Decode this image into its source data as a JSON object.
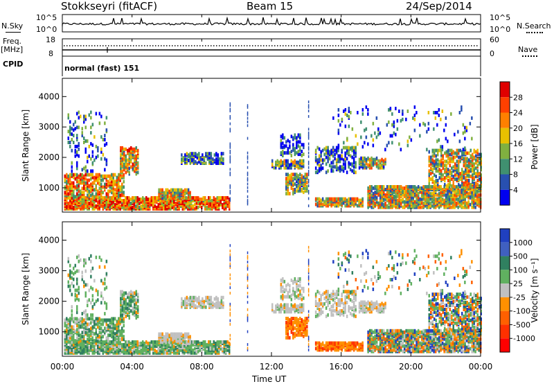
{
  "header": {
    "station": "Stokkseyri (fitACF)",
    "beam": "Beam 15",
    "date": "24/Sep/2014"
  },
  "panels": {
    "nsky_label": "N.Sky",
    "nsky_ticks": [
      "10^5",
      "10^0"
    ],
    "nsearch_label": "N.Search",
    "freq_label": "Freq.",
    "freq_unit": "[MHz]",
    "freq_ticks": [
      "18",
      "8"
    ],
    "nave_ticks": [
      "60",
      "0"
    ],
    "nave_label": "Nave",
    "cpid_label": "CPID",
    "cpid_text": "normal (fast) 151"
  },
  "chart_data": [
    {
      "type": "heatmap",
      "name": "power",
      "ylabel": "Slant Range [km]",
      "y_ticks": [
        1000,
        2000,
        3000,
        4000
      ],
      "ylim": [
        200,
        4600
      ],
      "xlabel": "",
      "x_ticks": [
        "00:00",
        "04:00",
        "08:00",
        "12:00",
        "16:00",
        "20:00",
        "00:00"
      ],
      "xlim_hours": [
        0,
        24
      ],
      "colorbar": {
        "label": "Power [dB]",
        "ticks": [
          "28",
          "24",
          "20",
          "16",
          "12",
          "8",
          "4"
        ],
        "colors": [
          "#e00000",
          "#ff4000",
          "#ff8000",
          "#e8c000",
          "#80b040",
          "#409070",
          "#2850b0",
          "#0000f0"
        ]
      }
    },
    {
      "type": "heatmap",
      "name": "velocity",
      "ylabel": "Slant Range [km]",
      "y_ticks": [
        1000,
        2000,
        3000,
        4000
      ],
      "ylim": [
        200,
        4600
      ],
      "xlabel": "Time UT",
      "x_ticks": [
        "00:00",
        "04:00",
        "08:00",
        "12:00",
        "16:00",
        "20:00",
        "00:00"
      ],
      "xlim_hours": [
        0,
        24
      ],
      "colorbar": {
        "label": "Velocity [m s⁻¹]",
        "ticks": [
          "1000",
          "500",
          "100",
          "25",
          "-25",
          "-100",
          "-500",
          "-1000"
        ],
        "colors": [
          "#2040c0",
          "#4060c0",
          "#308060",
          "#60b060",
          "#c0c0c0",
          "#ff9000",
          "#ff6000",
          "#ff3000",
          "#ff0000"
        ]
      }
    }
  ]
}
